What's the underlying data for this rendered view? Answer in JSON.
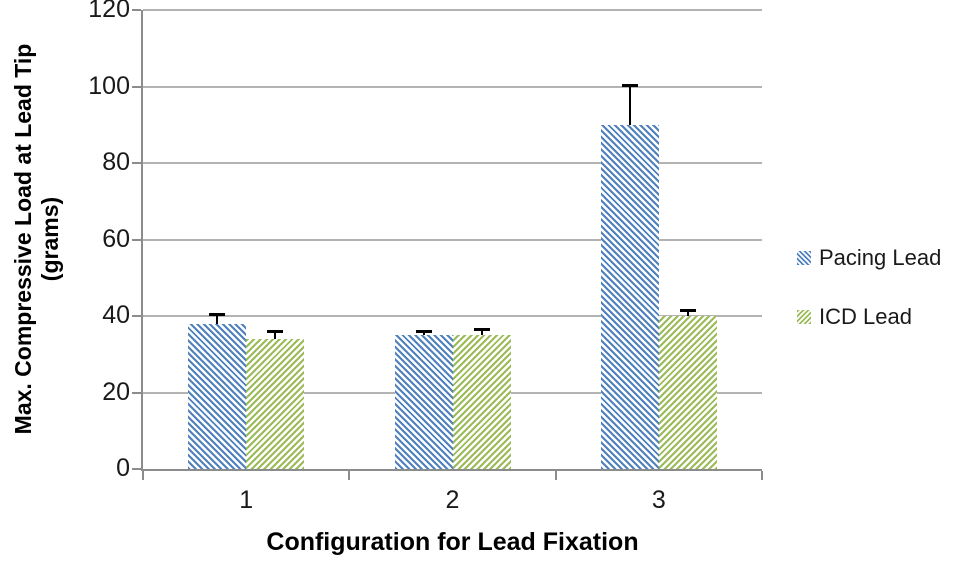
{
  "chart_data": {
    "type": "bar",
    "title": "",
    "xlabel": "Configuration for Lead Fixation",
    "ylabel_line1": "Max. Compressive Load at Lead Tip",
    "ylabel_line2": "(grams)",
    "categories": [
      "1",
      "2",
      "3"
    ],
    "series": [
      {
        "name": "Pacing Lead",
        "color": "#4f81bd",
        "hatch": "downward-diagonal",
        "values": [
          38,
          35,
          90
        ],
        "errors_plus": [
          2,
          0.5,
          10
        ]
      },
      {
        "name": "ICD Lead",
        "color": "#9bbb59",
        "hatch": "upward-diagonal",
        "values": [
          34,
          35,
          40
        ],
        "errors_plus": [
          1.5,
          1,
          1
        ]
      }
    ],
    "ylim": [
      0,
      120
    ],
    "yticks": [
      0,
      20,
      40,
      60,
      80,
      100,
      120
    ],
    "grid": "horizontal",
    "legend_position": "right",
    "error_bar_color": "#000000"
  }
}
